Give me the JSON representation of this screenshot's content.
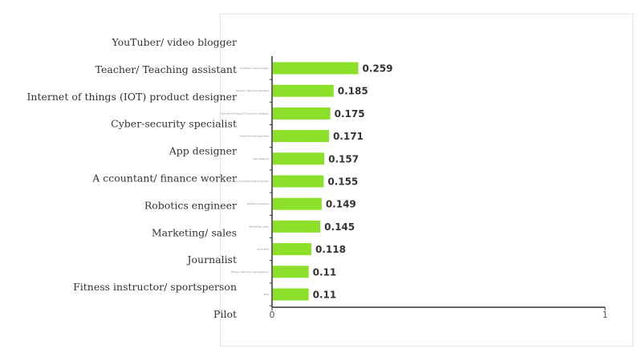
{
  "chart_data": {
    "type": "bar",
    "orientation": "horizontal",
    "categories": [
      "YouTuber/ video blogger",
      "Teacher/ Teaching assistant",
      "Internet of things (IOT) product designer",
      "Cyber-security specialist",
      "App designer",
      "A ccountant/ finance worker",
      "Robotics engineer",
      "Marketing/ sales",
      "Journalist",
      "Fitness instructor/ sportsperson",
      "Pilot"
    ],
    "values": [
      0.259,
      0.185,
      0.175,
      0.171,
      0.157,
      0.155,
      0.149,
      0.145,
      0.118,
      0.11,
      0.11
    ],
    "value_labels": [
      "0.259",
      "0.185",
      "0.175",
      "0.171",
      "0.157",
      "0.155",
      "0.149",
      "0.145",
      "0.118",
      "0.11",
      "0.11"
    ],
    "xlim": [
      0,
      1
    ],
    "x_ticks": [
      "0",
      "1"
    ],
    "title": "",
    "xlabel": "",
    "ylabel": "",
    "grid": false,
    "legend": "none",
    "bar_color": "#8ce02a",
    "axis_color": "#333333"
  }
}
